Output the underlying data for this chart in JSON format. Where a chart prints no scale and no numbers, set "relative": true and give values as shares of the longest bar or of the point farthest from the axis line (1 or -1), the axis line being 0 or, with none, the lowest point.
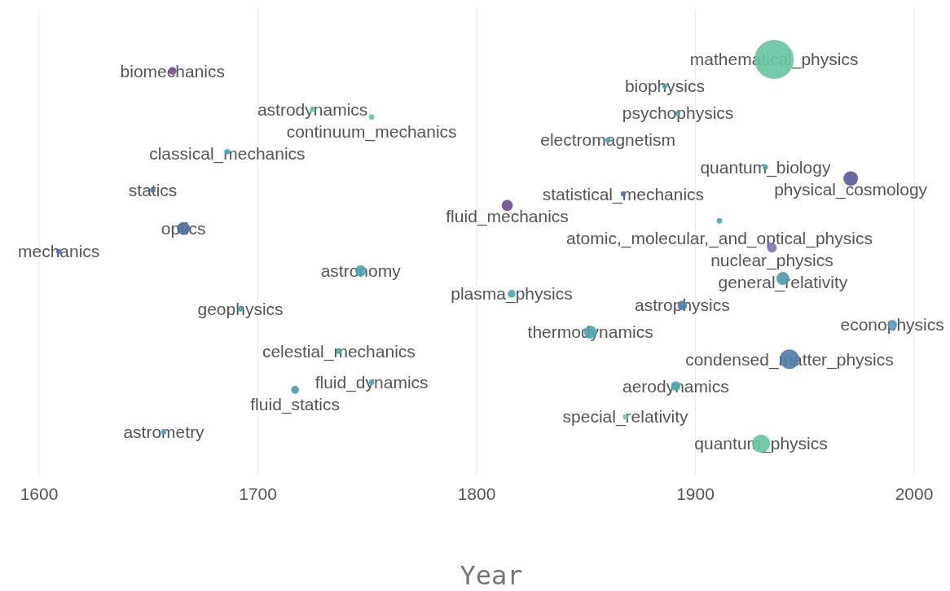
{
  "chart_data": {
    "type": "bubble",
    "xlabel": "Year",
    "xlim": [
      1600,
      2000
    ],
    "xticks": [
      1600,
      1700,
      1800,
      1900,
      2000
    ],
    "grid": "x",
    "relative": true,
    "marker": "circle",
    "x": [
      1661,
      1725,
      1752,
      1686,
      1652,
      1666,
      1609,
      1747,
      1692,
      1737,
      1752,
      1717,
      1657,
      1936,
      1886,
      1892,
      1860,
      1932,
      1971,
      1867,
      1814,
      1911,
      1935,
      1940,
      1816,
      1894,
      1990,
      1852,
      1943,
      1891,
      1868,
      1930
    ],
    "values": [
      0.97,
      0.87,
      0.85,
      0.76,
      0.66,
      0.56,
      0.5,
      0.45,
      0.35,
      0.24,
      0.16,
      0.14,
      0.03,
      1.0,
      0.93,
      0.86,
      0.79,
      0.72,
      0.69,
      0.65,
      0.62,
      0.58,
      0.51,
      0.43,
      0.39,
      0.36,
      0.31,
      0.29,
      0.22,
      0.15,
      0.07,
      0
    ],
    "sizes": [
      0.04,
      0.01,
      0.02,
      0.02,
      0.01,
      0.11,
      0.01,
      0.08,
      0.01,
      0.02,
      0.02,
      0.04,
      0.01,
      1.0,
      0.01,
      0.01,
      0.02,
      0.01,
      0.14,
      0.01,
      0.08,
      0.02,
      0.06,
      0.11,
      0.04,
      0.06,
      0.06,
      0.11,
      0.25,
      0.06,
      0.01,
      0.21
    ],
    "colors": [
      "#7b4a93",
      "#60c8a0",
      "#67c99a",
      "#4aa8b0",
      "#5577aa",
      "#4e6fa0",
      "#5577aa",
      "#4aa5b0",
      "#4aa8b0",
      "#4aa8b0",
      "#4aa8b0",
      "#4a9aae",
      "#4aa8b0",
      "#66c4a0",
      "#4aa8b0",
      "#4aa8b0",
      "#4aa8b0",
      "#4aa8b0",
      "#5b5b99",
      "#5577aa",
      "#6a4d9a",
      "#4aa8b0",
      "#7b72b8",
      "#4f9aac",
      "#4aa5b0",
      "#4f7fa8",
      "#5a9cc0",
      "#4aa5ad",
      "#4f7aa6",
      "#4aaaaa",
      "#6fcf8f",
      "#66c4a0"
    ],
    "annotations": [
      {
        "text": "biomechanics",
        "x": 1661,
        "y": 0.97
      },
      {
        "text": "astrodynamics",
        "x": 1725,
        "y": 0.87
      },
      {
        "text": "continuum_mechanics",
        "x": 1752,
        "y": 0.85
      },
      {
        "text": "classical_mechanics",
        "x": 1686,
        "y": 0.76
      },
      {
        "text": "statics",
        "x": 1652,
        "y": 0.66
      },
      {
        "text": "optics",
        "x": 1666,
        "y": 0.56
      },
      {
        "text": "mechanics",
        "x": 1609,
        "y": 0.5
      },
      {
        "text": "astronomy",
        "x": 1747,
        "y": 0.45
      },
      {
        "text": "geophysics",
        "x": 1692,
        "y": 0.35
      },
      {
        "text": "celestial_mechanics",
        "x": 1737,
        "y": 0.24
      },
      {
        "text": "fluid_dynamics",
        "x": 1752,
        "y": 0.16
      },
      {
        "text": "fluid_statics",
        "x": 1717,
        "y": 0.14
      },
      {
        "text": "astrometry",
        "x": 1657,
        "y": 0.03
      },
      {
        "text": "mathematical_physics",
        "x": 1936,
        "y": 1.0
      },
      {
        "text": "biophysics",
        "x": 1886,
        "y": 0.93
      },
      {
        "text": "psychophysics",
        "x": 1892,
        "y": 0.86
      },
      {
        "text": "electromagnetism",
        "x": 1860,
        "y": 0.79
      },
      {
        "text": "quantum_biology",
        "x": 1932,
        "y": 0.72
      },
      {
        "text": "physical_cosmology",
        "x": 1971,
        "y": 0.69
      },
      {
        "text": "statistical_mechanics",
        "x": 1867,
        "y": 0.65
      },
      {
        "text": "fluid_mechanics",
        "x": 1814,
        "y": 0.62
      },
      {
        "text": "atomic,_molecular,_and_optical_physics",
        "x": 1911,
        "y": 0.58
      },
      {
        "text": "nuclear_physics",
        "x": 1935,
        "y": 0.51
      },
      {
        "text": "general_relativity",
        "x": 1940,
        "y": 0.43
      },
      {
        "text": "plasma_physics",
        "x": 1816,
        "y": 0.39
      },
      {
        "text": "astrophysics",
        "x": 1894,
        "y": 0.36
      },
      {
        "text": "econophysics",
        "x": 1990,
        "y": 0.31
      },
      {
        "text": "thermodynamics",
        "x": 1852,
        "y": 0.29
      },
      {
        "text": "condensed_matter_physics",
        "x": 1943,
        "y": 0.22
      },
      {
        "text": "aerodynamics",
        "x": 1891,
        "y": 0.15
      },
      {
        "text": "special_relativity",
        "x": 1868,
        "y": 0.07
      },
      {
        "text": "quantum_physics",
        "x": 1930,
        "y": 0
      }
    ]
  }
}
